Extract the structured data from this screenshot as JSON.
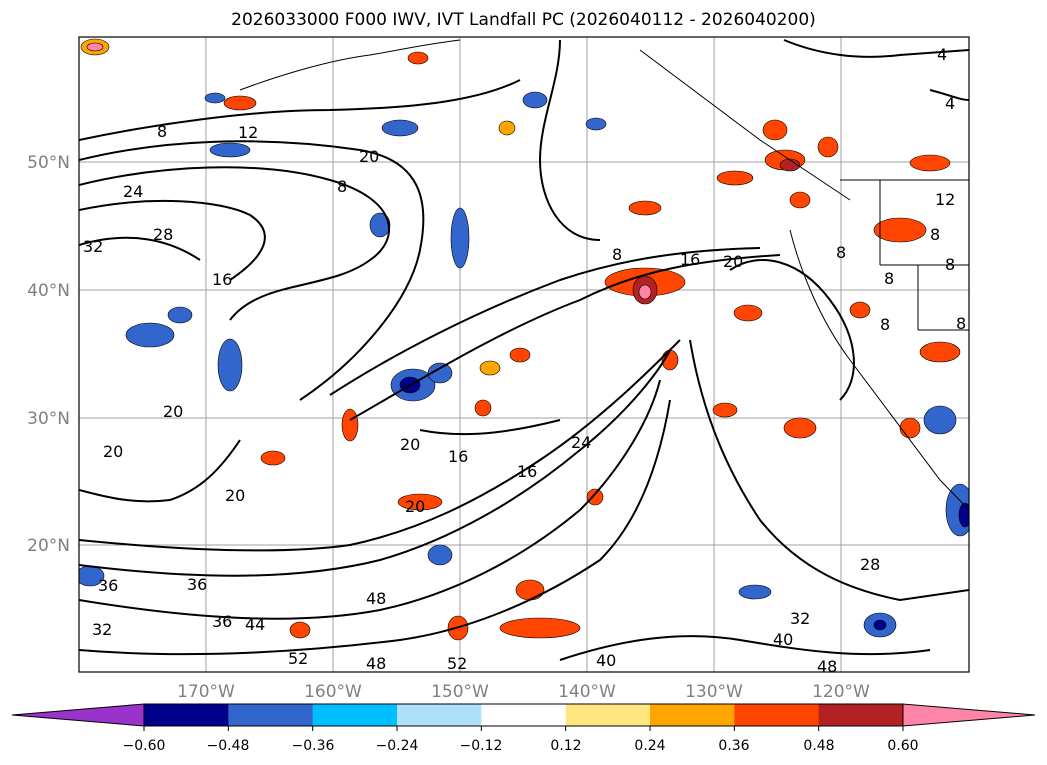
{
  "title": "2026033000 F000 IWV, IVT Landfall PC (2026040112 - 2026040200)",
  "lat_labels": [
    "50°N",
    "40°N",
    "30°N",
    "20°N"
  ],
  "lon_labels": [
    "170°W",
    "160°W",
    "150°W",
    "140°W",
    "130°W",
    "120°W"
  ],
  "colorbar": {
    "colors": [
      "#9933cc",
      "#00008b",
      "#3366cc",
      "#00bfff",
      "#aee0fa",
      "#ffffff",
      "#ffe680",
      "#ffa500",
      "#ff4500",
      "#b22222",
      "#ff85a8"
    ],
    "tick_labels": [
      "−0.60",
      "−0.48",
      "−0.36",
      "−0.24",
      "−0.12",
      "0.12",
      "0.24",
      "0.36",
      "0.48",
      "0.60"
    ]
  },
  "contour_labels": [
    {
      "id": "cl-8a",
      "text": "8"
    },
    {
      "id": "cl-12a",
      "text": "12"
    },
    {
      "id": "cl-20a",
      "text": "20"
    },
    {
      "id": "cl-24",
      "text": "24"
    },
    {
      "id": "cl-8b",
      "text": "8"
    },
    {
      "id": "cl-28a",
      "text": "28"
    },
    {
      "id": "cl-32a",
      "text": "32"
    },
    {
      "id": "cl-16a",
      "text": "16"
    },
    {
      "id": "cl-8c",
      "text": "8"
    },
    {
      "id": "cl-16b",
      "text": "16"
    },
    {
      "id": "cl-20b",
      "text": "20"
    },
    {
      "id": "cl-20c",
      "text": "20"
    },
    {
      "id": "cl-20d",
      "text": "20"
    },
    {
      "id": "cl-20e",
      "text": "20"
    },
    {
      "id": "cl-20f",
      "text": "20"
    },
    {
      "id": "cl-16c",
      "text": "16"
    },
    {
      "id": "cl-24b",
      "text": "24"
    },
    {
      "id": "cl-16d",
      "text": "16"
    },
    {
      "id": "cl-20g",
      "text": "20"
    },
    {
      "id": "cl-36a",
      "text": "36"
    },
    {
      "id": "cl-36b",
      "text": "36"
    },
    {
      "id": "cl-32b",
      "text": "32"
    },
    {
      "id": "cl-36c",
      "text": "36"
    },
    {
      "id": "cl-44",
      "text": "44"
    },
    {
      "id": "cl-48a",
      "text": "48"
    },
    {
      "id": "cl-52a",
      "text": "52"
    },
    {
      "id": "cl-48b",
      "text": "48"
    },
    {
      "id": "cl-52b",
      "text": "52"
    },
    {
      "id": "cl-40a",
      "text": "40"
    },
    {
      "id": "cl-40b",
      "text": "40"
    },
    {
      "id": "cl-32c",
      "text": "32"
    },
    {
      "id": "cl-48c",
      "text": "48"
    },
    {
      "id": "cl-28b",
      "text": "28"
    },
    {
      "id": "cl-4a",
      "text": "4"
    },
    {
      "id": "cl-4b",
      "text": "4"
    },
    {
      "id": "cl-12b",
      "text": "12"
    },
    {
      "id": "cl-8d",
      "text": "8"
    },
    {
      "id": "cl-8e",
      "text": "8"
    },
    {
      "id": "cl-8f",
      "text": "8"
    },
    {
      "id": "cl-8g",
      "text": "8"
    },
    {
      "id": "cl-8h",
      "text": "8"
    },
    {
      "id": "cl-8i",
      "text": "8"
    }
  ]
}
